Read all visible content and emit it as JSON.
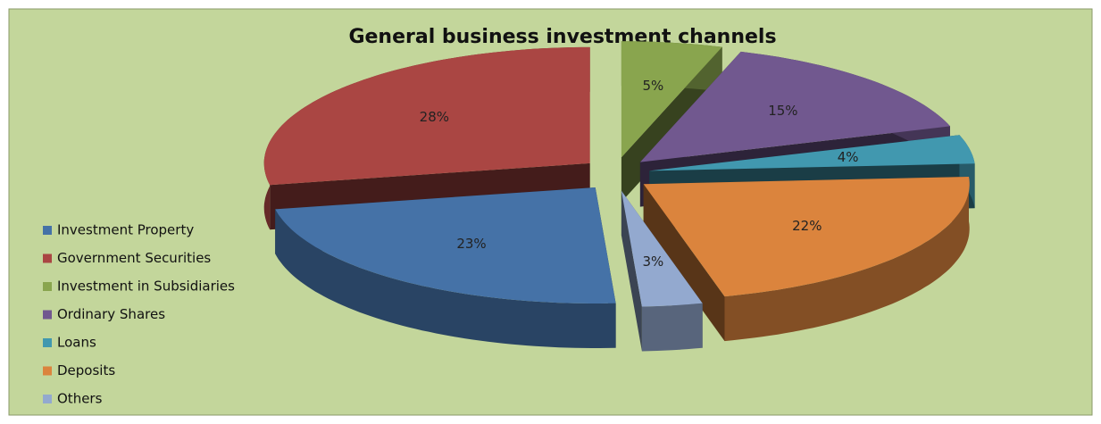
{
  "chart_data": {
    "type": "pie3d",
    "title": "General business investment channels",
    "categories": [
      "Investment Property",
      "Government Securities",
      "Investment in Subsidiaries",
      "Ordinary Shares",
      "Loans",
      "Deposits",
      "Others"
    ],
    "values": [
      23,
      28,
      5,
      15,
      4,
      22,
      3
    ],
    "value_labels": [
      "23%",
      "28%",
      "5%",
      "15%",
      "4%",
      "22%",
      "3%"
    ],
    "colors": [
      "#4572a7",
      "#aa4643",
      "#89a54e",
      "#71588f",
      "#4198af",
      "#db843d",
      "#93a9cf"
    ],
    "legend": "left"
  }
}
